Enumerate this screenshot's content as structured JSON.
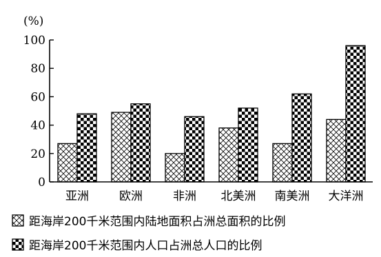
{
  "chart_data": {
    "type": "bar",
    "ylabel": "(%)",
    "ylim": [
      0,
      100
    ],
    "yticks": [
      0,
      20,
      40,
      60,
      80,
      100
    ],
    "categories": [
      "亚洲",
      "欧洲",
      "非洲",
      "北美洲",
      "南美洲",
      "大洋洲"
    ],
    "series": [
      {
        "name": "距海岸200千米范围内陆地面积占洲总面积的比例",
        "pattern": "crosshatch",
        "values": [
          27,
          49,
          20,
          38,
          27,
          44
        ]
      },
      {
        "name": "距海岸200千米范围内人口占洲总人口的比例",
        "pattern": "checkerboard",
        "values": [
          48,
          55,
          46,
          52,
          62,
          96
        ]
      }
    ],
    "colors": {
      "ink": "#000000",
      "background": "#ffffff"
    }
  }
}
